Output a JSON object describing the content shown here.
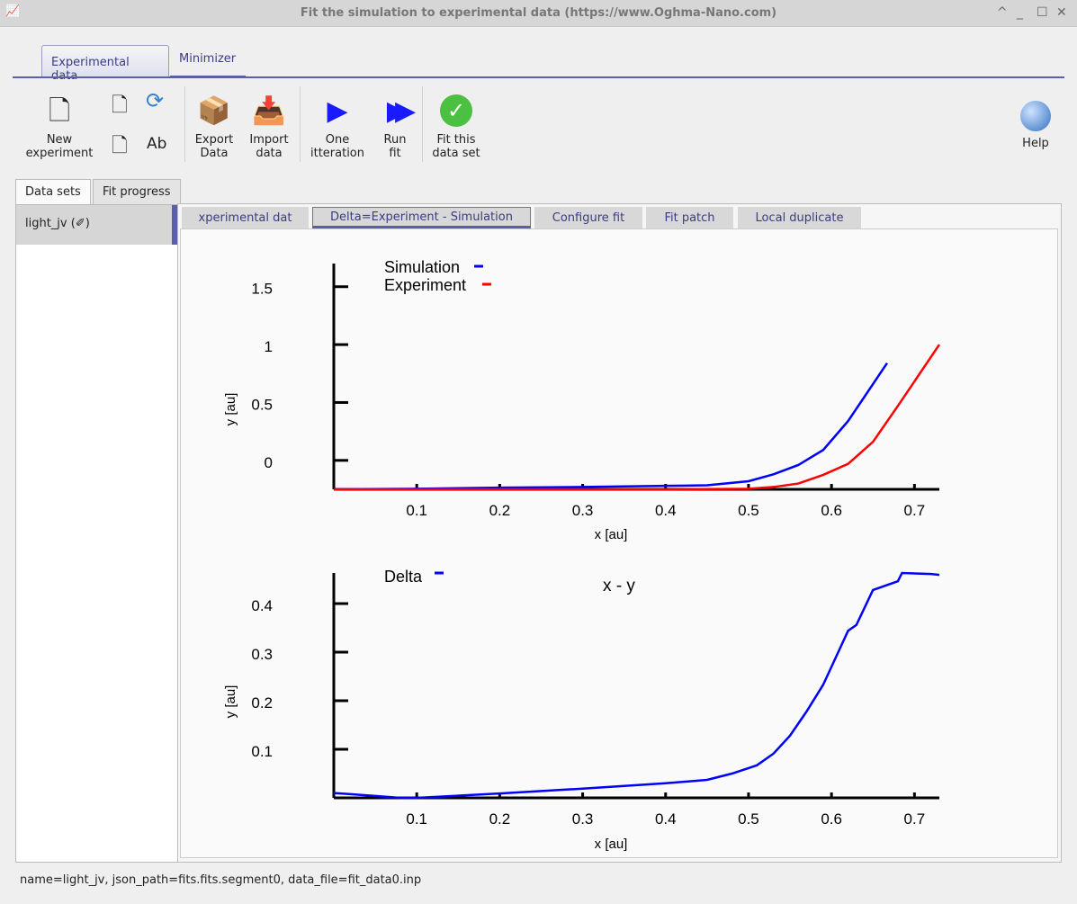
{
  "window": {
    "title": "Fit the simulation to experimental data (https://www.Oghma-Nano.com)",
    "controls": [
      "^",
      "_",
      "☐",
      "✕"
    ]
  },
  "main_tabs": [
    {
      "label": "Experimental data",
      "active": true
    },
    {
      "label": "Minimizer"
    }
  ],
  "toolbar": {
    "new_experiment": "New\nexperiment",
    "export": "Export\nData",
    "import": "Import\ndata",
    "one_iter": "One\nitteration",
    "run_fit": "Run\nfit",
    "fit_this": "Fit this\ndata set",
    "help": "Help",
    "rename": "Ab"
  },
  "side_tabs": [
    {
      "label": "Data sets",
      "active": true
    },
    {
      "label": "Fit progress"
    }
  ],
  "datasets": [
    {
      "label": "light_jv (✐)"
    }
  ],
  "plot_tabs": [
    {
      "label": "xperimental dat"
    },
    {
      "label": "Delta=Experiment - Simulation",
      "active": true
    },
    {
      "label": "Configure fit"
    },
    {
      "label": "Fit patch"
    },
    {
      "label": "Local duplicate"
    }
  ],
  "status": "name=light_jv, json_path=fits.fits.segment0, data_file=fit_data0.inp",
  "chart_data": [
    {
      "type": "line",
      "xlabel": "x [au]",
      "ylabel": "y [au]",
      "xlim": [
        0,
        0.73
      ],
      "ylim": [
        -0.25,
        1.7
      ],
      "xticks": [
        "0.1",
        "0.2",
        "0.3",
        "0.4",
        "0.5",
        "0.6",
        "0.7"
      ],
      "yticks": [
        "0",
        "0.5",
        "1",
        "1.5"
      ],
      "legend": "top-left",
      "series": [
        {
          "name": "Simulation",
          "color": "#0000ff",
          "x": [
            0,
            0.1,
            0.2,
            0.3,
            0.4,
            0.45,
            0.5,
            0.53,
            0.56,
            0.59,
            0.62,
            0.667
          ],
          "y": [
            -0.25,
            -0.245,
            -0.235,
            -0.23,
            -0.22,
            -0.215,
            -0.18,
            -0.12,
            -0.04,
            0.09,
            0.34,
            0.84
          ]
        },
        {
          "name": "Experiment",
          "color": "#ff0000",
          "x": [
            0,
            0.2,
            0.4,
            0.5,
            0.53,
            0.56,
            0.59,
            0.62,
            0.65,
            0.68,
            0.73
          ],
          "y": [
            -0.25,
            -0.25,
            -0.25,
            -0.245,
            -0.23,
            -0.2,
            -0.125,
            -0.03,
            0.16,
            0.47,
            1.0
          ]
        }
      ]
    },
    {
      "type": "line",
      "title": "x - y",
      "xlabel": "x [au]",
      "ylabel": "y [au]",
      "xlim": [
        0,
        0.73
      ],
      "ylim": [
        0,
        0.463
      ],
      "xticks": [
        "0.1",
        "0.2",
        "0.3",
        "0.4",
        "0.5",
        "0.6",
        "0.7"
      ],
      "yticks": [
        "0.1",
        "0.2",
        "0.3",
        "0.4"
      ],
      "legend": "top-left",
      "series": [
        {
          "name": "Delta",
          "color": "#0000ff",
          "x": [
            0,
            0.05,
            0.08,
            0.1,
            0.2,
            0.3,
            0.4,
            0.45,
            0.48,
            0.51,
            0.53,
            0.55,
            0.57,
            0.59,
            0.6,
            0.61,
            0.62,
            0.63,
            0.65,
            0.67,
            0.68,
            0.685,
            0.72,
            0.73
          ],
          "y": [
            0.01,
            0.004,
            0,
            0,
            0.009,
            0.019,
            0.03,
            0.037,
            0.05,
            0.067,
            0.091,
            0.128,
            0.178,
            0.233,
            0.27,
            0.307,
            0.344,
            0.356,
            0.428,
            0.44,
            0.446,
            0.463,
            0.461,
            0.459
          ]
        }
      ]
    }
  ]
}
